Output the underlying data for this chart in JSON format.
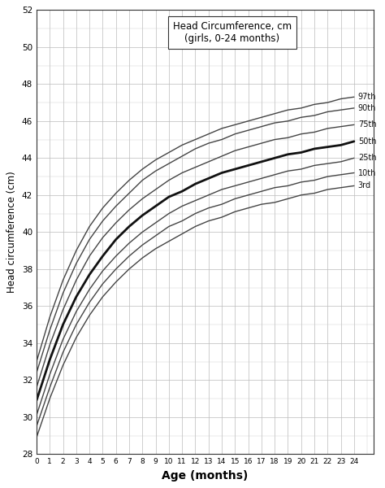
{
  "title_line1": "Head Circumference, cm",
  "title_line2": "(girls, 0-24 months)",
  "xlabel": "Age (months)",
  "ylabel": "Head circumference (cm)",
  "xlim": [
    0,
    24
  ],
  "ylim": [
    28,
    52
  ],
  "yticks": [
    28,
    30,
    32,
    34,
    36,
    38,
    40,
    42,
    44,
    46,
    48,
    50,
    52
  ],
  "xticks": [
    0,
    1,
    2,
    3,
    4,
    5,
    6,
    7,
    8,
    9,
    10,
    11,
    12,
    13,
    14,
    15,
    16,
    17,
    18,
    19,
    20,
    21,
    22,
    23,
    24
  ],
  "background_color": "#ffffff",
  "grid_color": "#bbbbbb",
  "percentiles": [
    "97th",
    "90th",
    "75th",
    "50th",
    "25th",
    "10th",
    "3rd"
  ],
  "line_colors": [
    "#444444",
    "#444444",
    "#444444",
    "#111111",
    "#444444",
    "#444444",
    "#444444"
  ],
  "line_widths": [
    1.0,
    1.0,
    1.0,
    2.0,
    1.0,
    1.0,
    1.0
  ],
  "ages": [
    0,
    1,
    2,
    3,
    4,
    5,
    6,
    7,
    8,
    9,
    10,
    11,
    12,
    13,
    14,
    15,
    16,
    17,
    18,
    19,
    20,
    21,
    22,
    23,
    24
  ],
  "curves": {
    "97th": [
      33.0,
      35.4,
      37.4,
      39.0,
      40.3,
      41.3,
      42.1,
      42.8,
      43.4,
      43.9,
      44.3,
      44.7,
      45.0,
      45.3,
      45.6,
      45.8,
      46.0,
      46.2,
      46.4,
      46.6,
      46.7,
      46.9,
      47.0,
      47.2,
      47.3
    ],
    "90th": [
      32.4,
      34.7,
      36.7,
      38.3,
      39.6,
      40.6,
      41.4,
      42.1,
      42.8,
      43.3,
      43.7,
      44.1,
      44.5,
      44.8,
      45.0,
      45.3,
      45.5,
      45.7,
      45.9,
      46.0,
      46.2,
      46.3,
      46.5,
      46.6,
      46.7
    ],
    "75th": [
      31.6,
      33.9,
      35.8,
      37.4,
      38.7,
      39.7,
      40.5,
      41.2,
      41.8,
      42.3,
      42.8,
      43.2,
      43.5,
      43.8,
      44.1,
      44.4,
      44.6,
      44.8,
      45.0,
      45.1,
      45.3,
      45.4,
      45.6,
      45.7,
      45.8
    ],
    "50th": [
      30.9,
      33.1,
      35.0,
      36.5,
      37.7,
      38.7,
      39.6,
      40.3,
      40.9,
      41.4,
      41.9,
      42.2,
      42.6,
      42.9,
      43.2,
      43.4,
      43.6,
      43.8,
      44.0,
      44.2,
      44.3,
      44.5,
      44.6,
      44.7,
      44.9
    ],
    "25th": [
      30.1,
      32.3,
      34.2,
      35.7,
      36.9,
      37.9,
      38.7,
      39.4,
      40.0,
      40.5,
      41.0,
      41.4,
      41.7,
      42.0,
      42.3,
      42.5,
      42.7,
      42.9,
      43.1,
      43.3,
      43.4,
      43.6,
      43.7,
      43.8,
      44.0
    ],
    "10th": [
      29.5,
      31.6,
      33.5,
      35.0,
      36.2,
      37.2,
      38.0,
      38.7,
      39.3,
      39.8,
      40.3,
      40.6,
      41.0,
      41.3,
      41.5,
      41.8,
      42.0,
      42.2,
      42.4,
      42.5,
      42.7,
      42.8,
      43.0,
      43.1,
      43.2
    ],
    "3rd": [
      28.9,
      31.0,
      32.8,
      34.3,
      35.5,
      36.5,
      37.3,
      38.0,
      38.6,
      39.1,
      39.5,
      39.9,
      40.3,
      40.6,
      40.8,
      41.1,
      41.3,
      41.5,
      41.6,
      41.8,
      42.0,
      42.1,
      42.3,
      42.4,
      42.5
    ]
  },
  "label_offsets": {
    "97th": 0.0,
    "90th": 0.0,
    "75th": 0.0,
    "50th": 0.0,
    "25th": 0.0,
    "10th": 0.0,
    "3rd": 0.0
  }
}
